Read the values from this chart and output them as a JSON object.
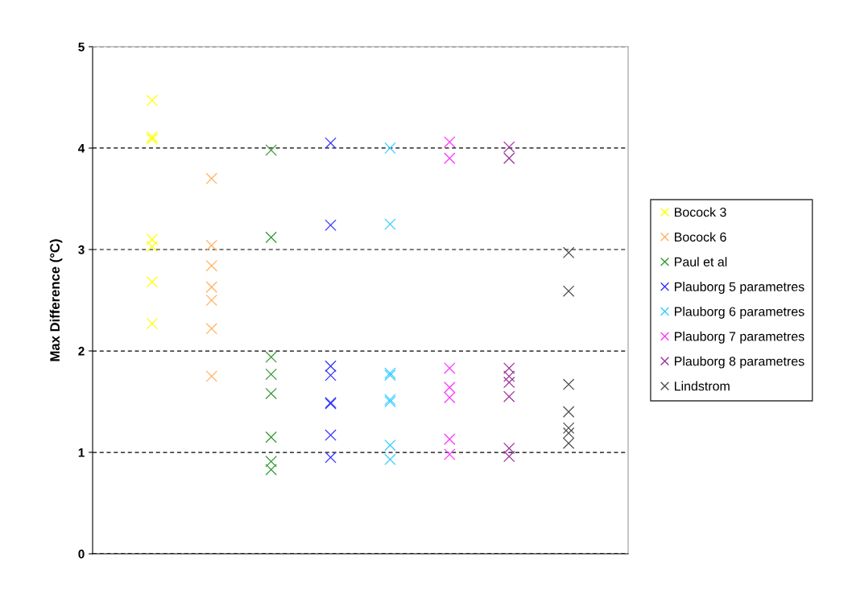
{
  "chart_data": {
    "type": "scatter",
    "ylabel": "Max Difference (°C)",
    "categories": [
      null,
      null,
      null,
      null,
      null,
      null,
      null,
      null
    ],
    "ylim": [
      0,
      5
    ],
    "yticks": [
      0,
      1,
      2,
      3,
      4,
      5
    ],
    "grid": "y",
    "legend": "right",
    "marker": "cross",
    "tick_labels": "y",
    "series": [
      {
        "name": "Bocock 3",
        "color": "#ffff00",
        "values": [
          4.47,
          null,
          null,
          null,
          null,
          null,
          null,
          null
        ]
      },
      {
        "color": "#ffff00",
        "values": [
          4.11,
          null,
          null,
          null,
          null,
          null,
          null,
          null
        ]
      },
      {
        "color": "#ffff00",
        "values": [
          4.09,
          null,
          null,
          null,
          null,
          null,
          null,
          null
        ]
      },
      {
        "color": "#ffff00",
        "values": [
          3.1,
          null,
          null,
          null,
          null,
          null,
          null,
          null
        ]
      },
      {
        "color": "#ffff00",
        "values": [
          3.03,
          null,
          null,
          null,
          null,
          null,
          null,
          null
        ]
      },
      {
        "color": "#ffff00",
        "values": [
          2.68,
          null,
          null,
          null,
          null,
          null,
          null,
          null
        ]
      },
      {
        "color": "#ffff00",
        "values": [
          2.27,
          null,
          null,
          null,
          null,
          null,
          null,
          null
        ]
      },
      {
        "name": "Bocock 6",
        "color": "#ffb060",
        "values": [
          null,
          3.7,
          null,
          null,
          null,
          null,
          null,
          null
        ]
      },
      {
        "color": "#ffb060",
        "values": [
          null,
          3.04,
          null,
          null,
          null,
          null,
          null,
          null
        ]
      },
      {
        "color": "#ffb060",
        "values": [
          null,
          2.84,
          null,
          null,
          null,
          null,
          null,
          null
        ]
      },
      {
        "color": "#ffb060",
        "values": [
          null,
          2.63,
          null,
          null,
          null,
          null,
          null,
          null
        ]
      },
      {
        "color": "#ffb060",
        "values": [
          null,
          2.5,
          null,
          null,
          null,
          null,
          null,
          null
        ]
      },
      {
        "color": "#ffb060",
        "values": [
          null,
          2.22,
          null,
          null,
          null,
          null,
          null,
          null
        ]
      },
      {
        "color": "#ffb060",
        "values": [
          null,
          1.75,
          null,
          null,
          null,
          null,
          null,
          null
        ]
      },
      {
        "name": "Paul et al",
        "color": "#339933",
        "values": [
          null,
          null,
          3.98,
          null,
          null,
          null,
          null,
          null
        ]
      },
      {
        "color": "#339933",
        "values": [
          null,
          null,
          3.12,
          null,
          null,
          null,
          null,
          null
        ]
      },
      {
        "color": "#339933",
        "values": [
          null,
          null,
          1.94,
          null,
          null,
          null,
          null,
          null
        ]
      },
      {
        "color": "#339933",
        "values": [
          null,
          null,
          1.77,
          null,
          null,
          null,
          null,
          null
        ]
      },
      {
        "color": "#339933",
        "values": [
          null,
          null,
          1.58,
          null,
          null,
          null,
          null,
          null
        ]
      },
      {
        "color": "#339933",
        "values": [
          null,
          null,
          1.15,
          null,
          null,
          null,
          null,
          null
        ]
      },
      {
        "color": "#339933",
        "values": [
          null,
          null,
          0.91,
          null,
          null,
          null,
          null,
          null
        ]
      },
      {
        "color": "#339933",
        "values": [
          null,
          null,
          0.83,
          null,
          null,
          null,
          null,
          null
        ]
      },
      {
        "name": "Plauborg 5 parametres",
        "color": "#3333ff",
        "values": [
          null,
          null,
          null,
          4.05,
          null,
          null,
          null,
          null
        ]
      },
      {
        "color": "#3333ff",
        "values": [
          null,
          null,
          null,
          3.24,
          null,
          null,
          null,
          null
        ]
      },
      {
        "color": "#3333ff",
        "values": [
          null,
          null,
          null,
          1.85,
          null,
          null,
          null,
          null
        ]
      },
      {
        "color": "#3333ff",
        "values": [
          null,
          null,
          null,
          1.76,
          null,
          null,
          null,
          null
        ]
      },
      {
        "color": "#3333ff",
        "values": [
          null,
          null,
          null,
          1.49,
          null,
          null,
          null,
          null
        ]
      },
      {
        "color": "#3333ff",
        "values": [
          null,
          null,
          null,
          1.48,
          null,
          null,
          null,
          null
        ]
      },
      {
        "color": "#3333ff",
        "values": [
          null,
          null,
          null,
          1.17,
          null,
          null,
          null,
          null
        ]
      },
      {
        "color": "#3333ff",
        "values": [
          null,
          null,
          null,
          0.95,
          null,
          null,
          null,
          null
        ]
      },
      {
        "name": "Plauborg 6 parametres",
        "color": "#33ccff",
        "values": [
          null,
          null,
          null,
          null,
          4.0,
          null,
          null,
          null
        ]
      },
      {
        "color": "#33ccff",
        "values": [
          null,
          null,
          null,
          null,
          3.25,
          null,
          null,
          null
        ]
      },
      {
        "color": "#33ccff",
        "values": [
          null,
          null,
          null,
          null,
          1.78,
          null,
          null,
          null
        ]
      },
      {
        "color": "#33ccff",
        "values": [
          null,
          null,
          null,
          null,
          1.76,
          null,
          null,
          null
        ]
      },
      {
        "color": "#33ccff",
        "values": [
          null,
          null,
          null,
          null,
          1.52,
          null,
          null,
          null
        ]
      },
      {
        "color": "#33ccff",
        "values": [
          null,
          null,
          null,
          null,
          1.5,
          null,
          null,
          null
        ]
      },
      {
        "color": "#33ccff",
        "values": [
          null,
          null,
          null,
          null,
          1.07,
          null,
          null,
          null
        ]
      },
      {
        "color": "#33ccff",
        "values": [
          null,
          null,
          null,
          null,
          0.93,
          null,
          null,
          null
        ]
      },
      {
        "name": "Plauborg 7 parametres",
        "color": "#ff33ff",
        "values": [
          null,
          null,
          null,
          null,
          null,
          4.06,
          null,
          null
        ]
      },
      {
        "color": "#ff33ff",
        "values": [
          null,
          null,
          null,
          null,
          null,
          3.9,
          null,
          null
        ]
      },
      {
        "color": "#ff33ff",
        "values": [
          null,
          null,
          null,
          null,
          null,
          1.83,
          null,
          null
        ]
      },
      {
        "color": "#ff33ff",
        "values": [
          null,
          null,
          null,
          null,
          null,
          1.64,
          null,
          null
        ]
      },
      {
        "color": "#ff33ff",
        "values": [
          null,
          null,
          null,
          null,
          null,
          1.54,
          null,
          null
        ]
      },
      {
        "color": "#ff33ff",
        "values": [
          null,
          null,
          null,
          null,
          null,
          1.13,
          null,
          null
        ]
      },
      {
        "color": "#ff33ff",
        "values": [
          null,
          null,
          null,
          null,
          null,
          0.98,
          null,
          null
        ]
      },
      {
        "name": "Plauborg 8 parametres",
        "color": "#993399",
        "values": [
          null,
          null,
          null,
          null,
          null,
          null,
          4.01,
          null
        ]
      },
      {
        "color": "#993399",
        "values": [
          null,
          null,
          null,
          null,
          null,
          null,
          3.9,
          null
        ]
      },
      {
        "color": "#993399",
        "values": [
          null,
          null,
          null,
          null,
          null,
          null,
          1.83,
          null
        ]
      },
      {
        "color": "#993399",
        "values": [
          null,
          null,
          null,
          null,
          null,
          null,
          1.75,
          null
        ]
      },
      {
        "color": "#993399",
        "values": [
          null,
          null,
          null,
          null,
          null,
          null,
          1.69,
          null
        ]
      },
      {
        "color": "#993399",
        "values": [
          null,
          null,
          null,
          null,
          null,
          null,
          1.55,
          null
        ]
      },
      {
        "color": "#993399",
        "values": [
          null,
          null,
          null,
          null,
          null,
          null,
          1.04,
          null
        ]
      },
      {
        "color": "#993399",
        "values": [
          null,
          null,
          null,
          null,
          null,
          null,
          0.96,
          null
        ]
      },
      {
        "name": "Lindstrom",
        "color": "#4d4d4d",
        "values": [
          null,
          null,
          null,
          null,
          null,
          null,
          null,
          2.97
        ]
      },
      {
        "color": "#4d4d4d",
        "values": [
          null,
          null,
          null,
          null,
          null,
          null,
          null,
          2.59
        ]
      },
      {
        "color": "#4d4d4d",
        "values": [
          null,
          null,
          null,
          null,
          null,
          null,
          null,
          1.67
        ]
      },
      {
        "color": "#4d4d4d",
        "values": [
          null,
          null,
          null,
          null,
          null,
          null,
          null,
          1.4
        ]
      },
      {
        "color": "#4d4d4d",
        "values": [
          null,
          null,
          null,
          null,
          null,
          null,
          null,
          1.24
        ]
      },
      {
        "color": "#4d4d4d",
        "values": [
          null,
          null,
          null,
          null,
          null,
          null,
          null,
          1.19
        ]
      },
      {
        "color": "#4d4d4d",
        "values": [
          null,
          null,
          null,
          null,
          null,
          null,
          null,
          1.09
        ]
      }
    ]
  }
}
